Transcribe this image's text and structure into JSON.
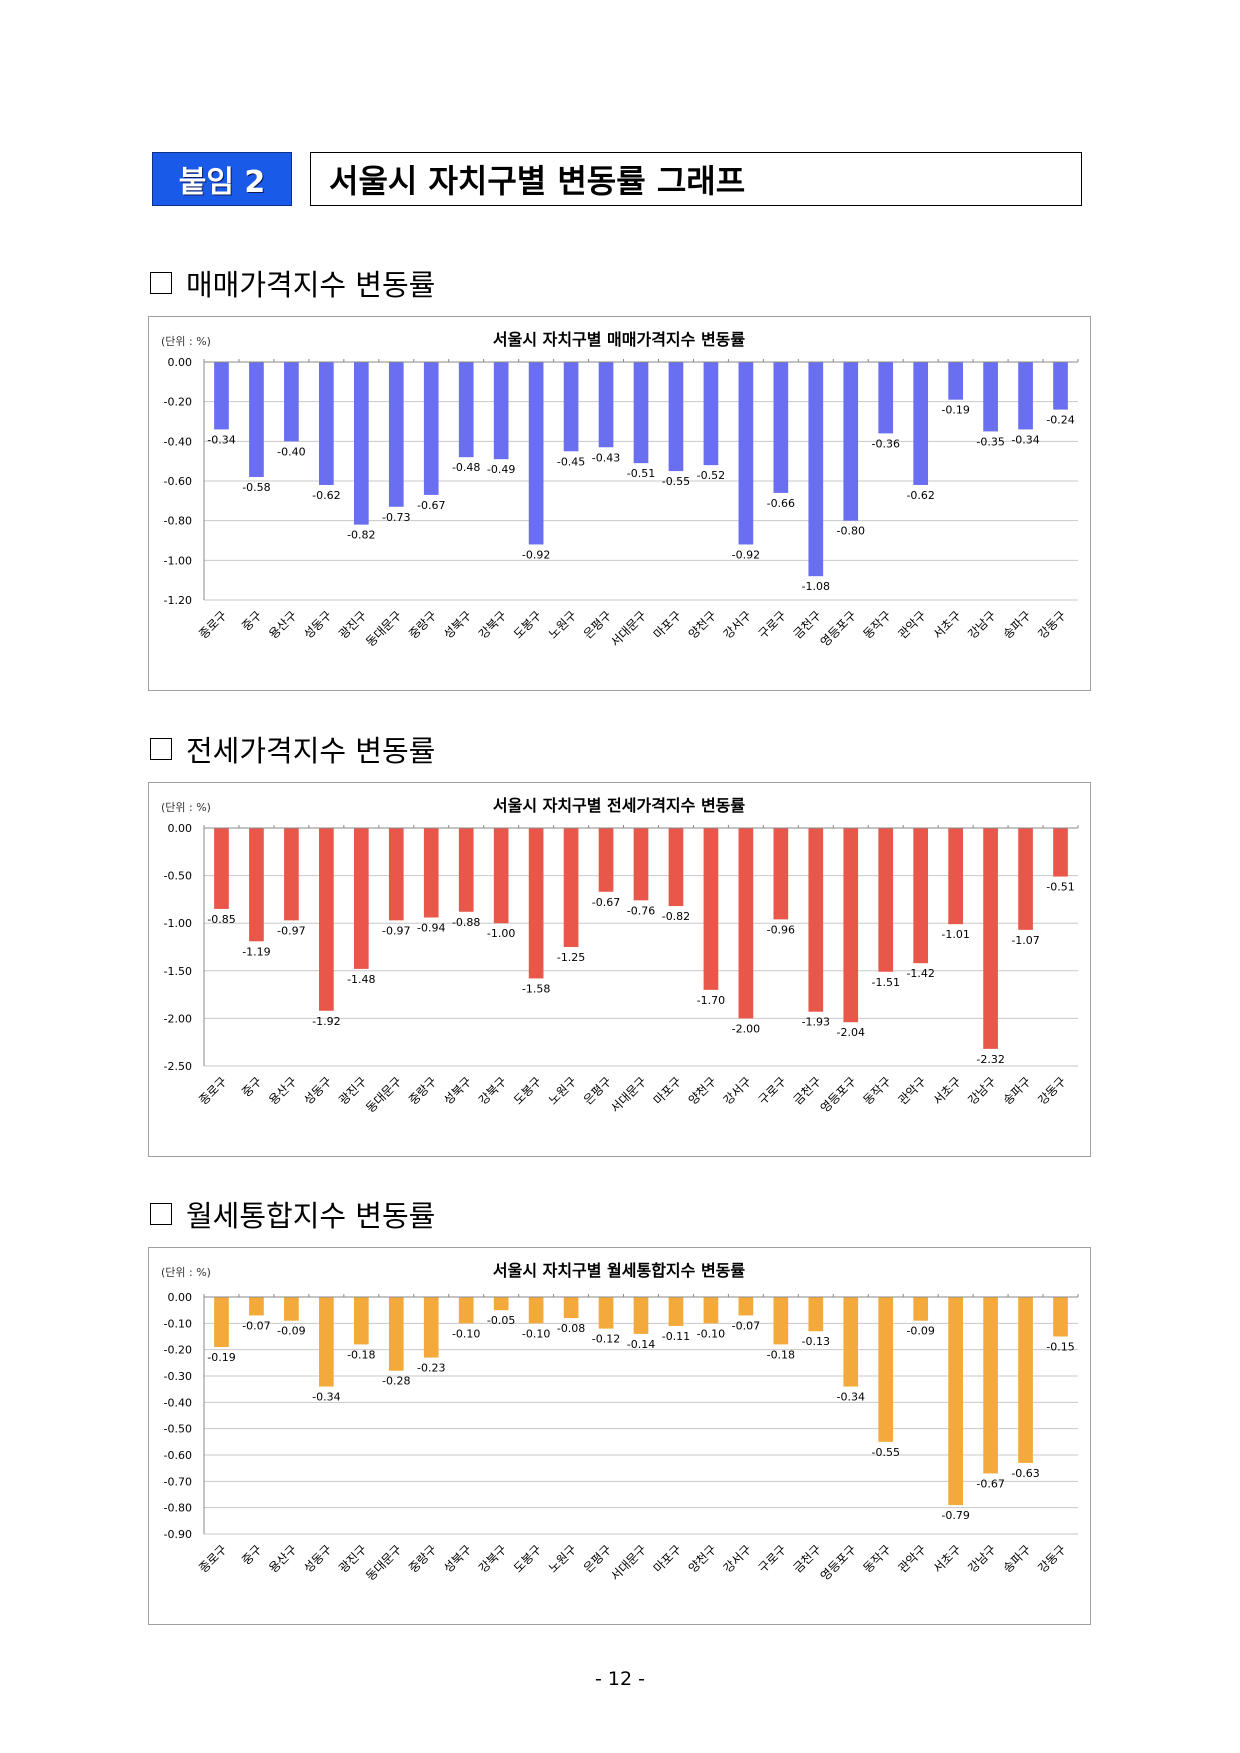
{
  "header": {
    "badge": "붙임 2",
    "title": "서울시 자치구별 변동률 그래프"
  },
  "sections": [
    {
      "heading": "매매가격지수 변동률"
    },
    {
      "heading": "전세가격지수 변동률"
    },
    {
      "heading": "월세통합지수 변동률"
    }
  ],
  "colors": {
    "sale": "#6a6ef0",
    "jeonse": "#e8574a",
    "monthly": "#f3aa3a",
    "badge": "#1a5ae8"
  },
  "chart_data": [
    {
      "type": "bar",
      "title": "서울시 자치구별 매매가격지수 변동률",
      "unit_label": "(단위 : %)",
      "categories": [
        "종로구",
        "중구",
        "용산구",
        "성동구",
        "광진구",
        "동대문구",
        "중랑구",
        "성북구",
        "강북구",
        "도봉구",
        "노원구",
        "은평구",
        "서대문구",
        "마포구",
        "양천구",
        "강서구",
        "구로구",
        "금천구",
        "영등포구",
        "동작구",
        "관악구",
        "서초구",
        "강남구",
        "송파구",
        "강동구"
      ],
      "values": [
        -0.34,
        -0.58,
        -0.4,
        -0.62,
        -0.82,
        -0.73,
        -0.67,
        -0.48,
        -0.49,
        -0.92,
        -0.45,
        -0.43,
        -0.51,
        -0.55,
        -0.52,
        -0.92,
        -0.66,
        -1.08,
        -0.8,
        -0.36,
        -0.62,
        -0.19,
        -0.35,
        -0.34,
        -0.24
      ],
      "yticks": [
        "0.00",
        "-0.20",
        "-0.40",
        "-0.60",
        "-0.80",
        "-1.00",
        "-1.20"
      ],
      "ylim": [
        -1.2,
        0
      ],
      "grid": true
    },
    {
      "type": "bar",
      "title": "서울시 자치구별 전세가격지수 변동률",
      "unit_label": "(단위 : %)",
      "categories": [
        "종로구",
        "중구",
        "용산구",
        "성동구",
        "광진구",
        "동대문구",
        "중랑구",
        "성북구",
        "강북구",
        "도봉구",
        "노원구",
        "은평구",
        "서대문구",
        "마포구",
        "양천구",
        "강서구",
        "구로구",
        "금천구",
        "영등포구",
        "동작구",
        "관악구",
        "서초구",
        "강남구",
        "송파구",
        "강동구"
      ],
      "values": [
        -0.85,
        -1.19,
        -0.97,
        -1.92,
        -1.48,
        -0.97,
        -0.94,
        -0.88,
        -1.0,
        -1.58,
        -1.25,
        -0.67,
        -0.76,
        -0.82,
        -1.7,
        -2.0,
        -0.96,
        -1.93,
        -2.04,
        -1.51,
        -1.42,
        -1.01,
        -2.32,
        -1.07,
        -0.51
      ],
      "yticks": [
        "0.00",
        "-0.50",
        "-1.00",
        "-1.50",
        "-2.00",
        "-2.50"
      ],
      "ylim": [
        -2.5,
        0
      ],
      "grid": true
    },
    {
      "type": "bar",
      "title": "서울시 자치구별 월세통합지수 변동률",
      "unit_label": "(단위 : %)",
      "categories": [
        "종로구",
        "중구",
        "용산구",
        "성동구",
        "광진구",
        "동대문구",
        "중랑구",
        "성북구",
        "강북구",
        "도봉구",
        "노원구",
        "은평구",
        "서대문구",
        "마포구",
        "양천구",
        "강서구",
        "구로구",
        "금천구",
        "영등포구",
        "동작구",
        "관악구",
        "서초구",
        "강남구",
        "송파구",
        "강동구"
      ],
      "values": [
        -0.19,
        -0.07,
        -0.09,
        -0.34,
        -0.18,
        -0.28,
        -0.23,
        -0.1,
        -0.05,
        -0.1,
        -0.08,
        -0.12,
        -0.14,
        -0.11,
        -0.1,
        -0.07,
        -0.18,
        -0.13,
        -0.34,
        -0.55,
        -0.09,
        -0.79,
        -0.67,
        -0.63,
        -0.15
      ],
      "yticks": [
        "0.00",
        "-0.10",
        "-0.20",
        "-0.30",
        "-0.40",
        "-0.50",
        "-0.60",
        "-0.70",
        "-0.80",
        "-0.90"
      ],
      "ylim": [
        -0.9,
        0
      ],
      "grid": true
    }
  ],
  "footer": {
    "page": "- 12 -"
  }
}
